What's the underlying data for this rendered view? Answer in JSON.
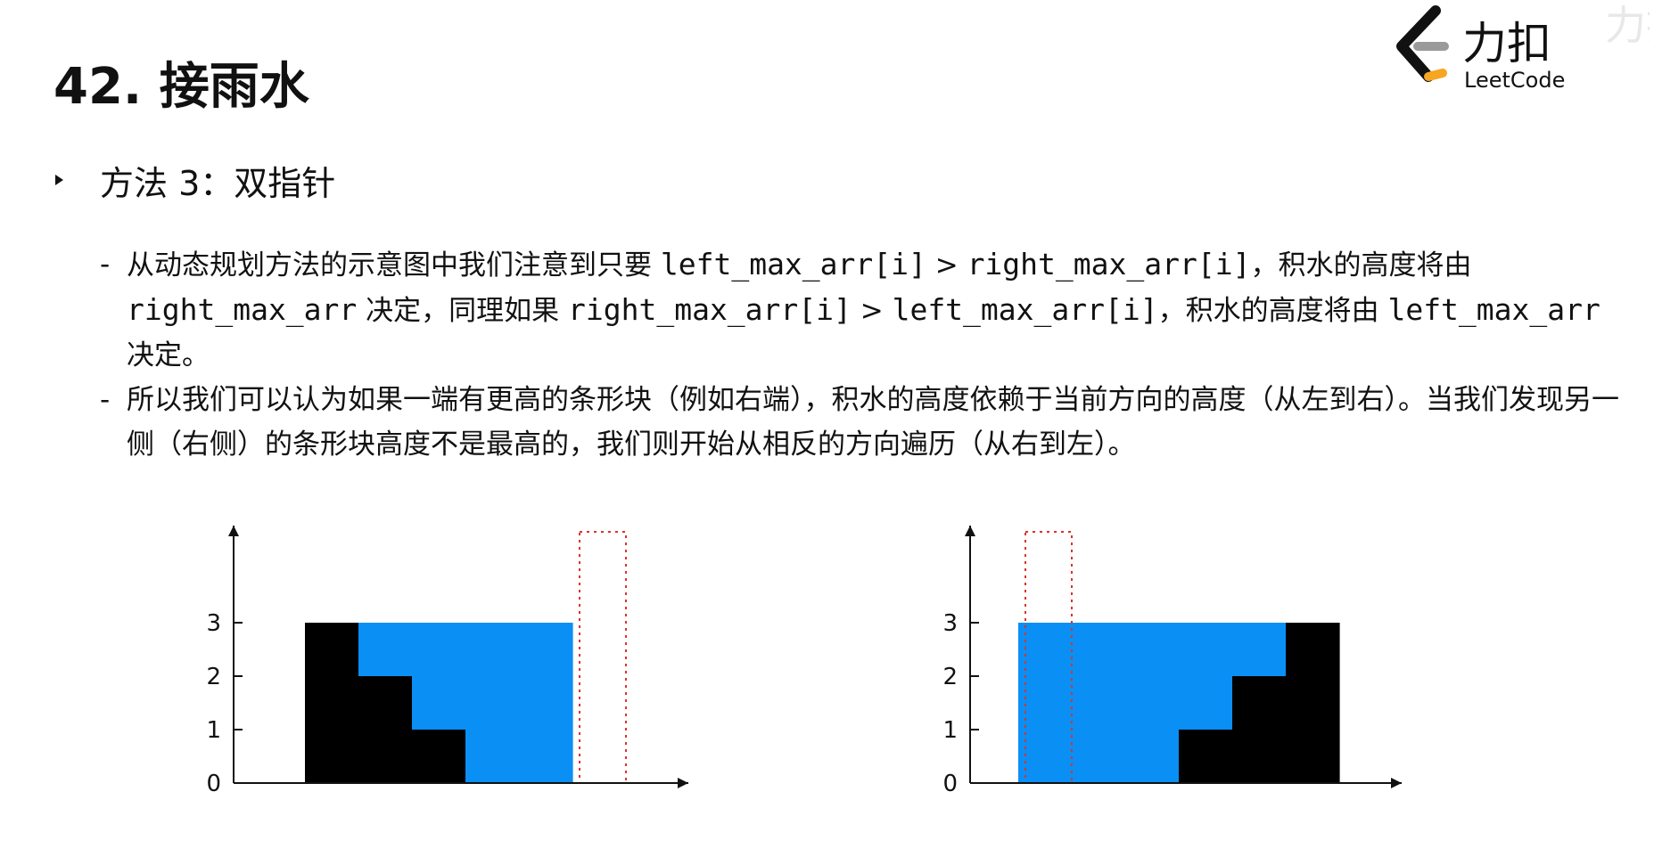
{
  "title": "42. 接雨水",
  "logo": {
    "cn": "力扣",
    "en": "LeetCode",
    "watermark": "力扣"
  },
  "method": {
    "label": "方法 3：双指针"
  },
  "items": [
    {
      "t1": "从动态规划方法的示意图中我们注意到只要 ",
      "c1": "left_max_arr[i]",
      "t2": " > ",
      "c2": "right_max_arr[i]",
      "t3": "，积水的高度将由 ",
      "c3": "right_max_arr",
      "t4": " 决定，同理如果 ",
      "c4": "right_max_arr[i]",
      "t5": " > ",
      "c5": "left_max_arr[i]",
      "t6": "，积水的高度将由 ",
      "c6": "left_max_arr",
      "t7": " 决定。"
    },
    {
      "t1": "所以我们可以认为如果一端有更高的条形块（例如右端），积水的高度依赖于当前方向的高度（从左到右）。当我们发现另一侧（右侧）的条形块高度不是最高的，我们则开始从相反的方向遍历（从右到左）。"
    }
  ],
  "colors": {
    "water": "#0a8ff5",
    "bar": "#000000",
    "dotted": "#d9342b",
    "axis": "#111111"
  },
  "chart_data": [
    {
      "type": "bar",
      "y_ticks": [
        "0",
        "1",
        "2",
        "3"
      ],
      "ylim": [
        0,
        4
      ],
      "bars": [
        3,
        2,
        1,
        0,
        0
      ],
      "water": [
        0,
        1,
        2,
        3,
        3
      ],
      "dotted_bar": {
        "index": 5,
        "height": 4.7
      }
    },
    {
      "type": "bar",
      "y_ticks": [
        "0",
        "1",
        "2",
        "3"
      ],
      "ylim": [
        0,
        4
      ],
      "dotted_bar": {
        "index": 0,
        "height": 4.7
      },
      "bars": [
        0,
        0,
        0,
        1,
        2,
        3
      ],
      "water": [
        3,
        3,
        3,
        2,
        1,
        0
      ]
    }
  ]
}
